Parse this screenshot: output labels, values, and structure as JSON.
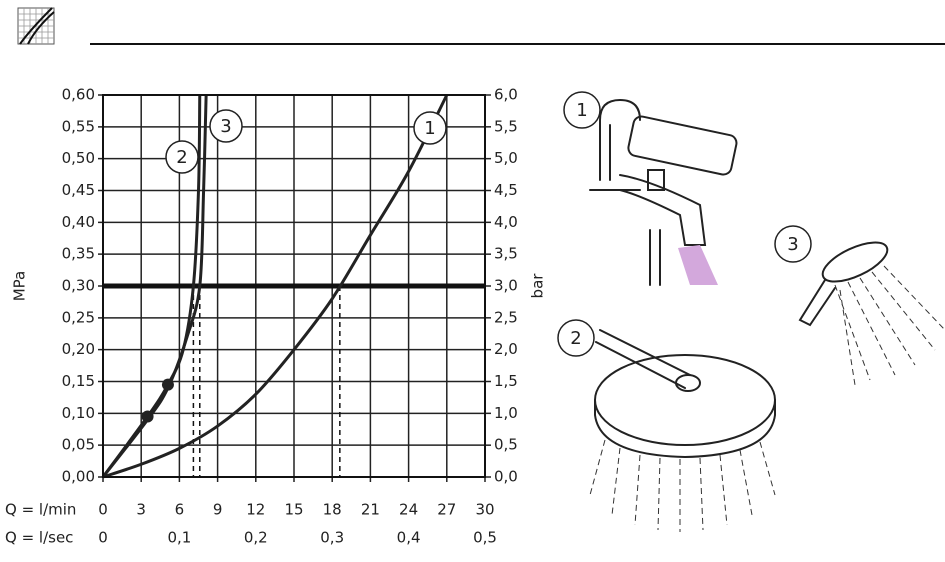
{
  "chart_data": {
    "type": "line",
    "xlabel": "Q = l/min",
    "x2label": "Q = l/sec",
    "ylabel": "MPa",
    "y2label": "bar",
    "xlim": [
      0,
      30
    ],
    "xticks": [
      0,
      3,
      6,
      9,
      12,
      15,
      18,
      21,
      24,
      27,
      30
    ],
    "x2lim": [
      0,
      0.5
    ],
    "x2ticks": [
      0,
      {
        "value": 0.1,
        "label": "0,1"
      },
      {
        "value": 0.2,
        "label": "0,2"
      },
      {
        "value": 0.3,
        "label": "0,3"
      },
      {
        "value": 0.4,
        "label": "0,4"
      },
      {
        "value": 0.5,
        "label": "0,5"
      }
    ],
    "ylim": [
      0,
      0.6
    ],
    "yticks": [
      {
        "value": 0,
        "label": "0,00"
      },
      {
        "value": 0.05,
        "label": "0,05"
      },
      {
        "value": 0.1,
        "label": "0,10"
      },
      {
        "value": 0.15,
        "label": "0,15"
      },
      {
        "value": 0.2,
        "label": "0,20"
      },
      {
        "value": 0.25,
        "label": "0,25"
      },
      {
        "value": 0.3,
        "label": "0,30"
      },
      {
        "value": 0.35,
        "label": "0,35"
      },
      {
        "value": 0.4,
        "label": "0,40"
      },
      {
        "value": 0.45,
        "label": "0,45"
      },
      {
        "value": 0.5,
        "label": "0,50"
      },
      {
        "value": 0.55,
        "label": "0,55"
      },
      {
        "value": 0.6,
        "label": "0,60"
      }
    ],
    "y2lim": [
      0,
      6
    ],
    "y2ticks": [
      {
        "value": 0,
        "label": "0,0"
      },
      {
        "value": 0.5,
        "label": "0,5"
      },
      {
        "value": 1,
        "label": "1,0"
      },
      {
        "value": 1.5,
        "label": "1,5"
      },
      {
        "value": 2,
        "label": "2,0"
      },
      {
        "value": 2.5,
        "label": "2,5"
      },
      {
        "value": 3,
        "label": "3,0"
      },
      {
        "value": 3.5,
        "label": "3,5"
      },
      {
        "value": 4,
        "label": "4,0"
      },
      {
        "value": 4.5,
        "label": "4,5"
      },
      {
        "value": 5,
        "label": "5,0"
      },
      {
        "value": 5.5,
        "label": "5,5"
      },
      {
        "value": 6,
        "label": "6,0"
      }
    ],
    "grid": true,
    "reference_y": 0.3,
    "dashed_x": [
      7.1,
      7.6,
      18.6
    ],
    "series": [
      {
        "name": "1",
        "color": "#222222",
        "x": [
          0,
          3,
          6,
          9,
          12,
          15,
          18,
          21,
          24,
          27
        ],
        "values": [
          0,
          0.02,
          0.045,
          0.08,
          0.13,
          0.2,
          0.28,
          0.38,
          0.48,
          0.6
        ]
      },
      {
        "name": "2",
        "color": "#222222",
        "x": [
          0,
          3.5,
          5.1,
          6.3,
          7.1,
          7.5,
          7.6
        ],
        "values": [
          0,
          0.095,
          0.145,
          0.2,
          0.3,
          0.45,
          0.6
        ],
        "dots": {
          "x": [
            3.5,
            5.1
          ],
          "y": [
            0.095,
            0.145
          ]
        }
      },
      {
        "name": "3",
        "color": "#222222",
        "x": [
          0,
          3.5,
          5.1,
          6.6,
          7.6,
          7.9,
          8.1
        ],
        "values": [
          0,
          0.09,
          0.14,
          0.22,
          0.3,
          0.45,
          0.6
        ]
      }
    ]
  }
}
